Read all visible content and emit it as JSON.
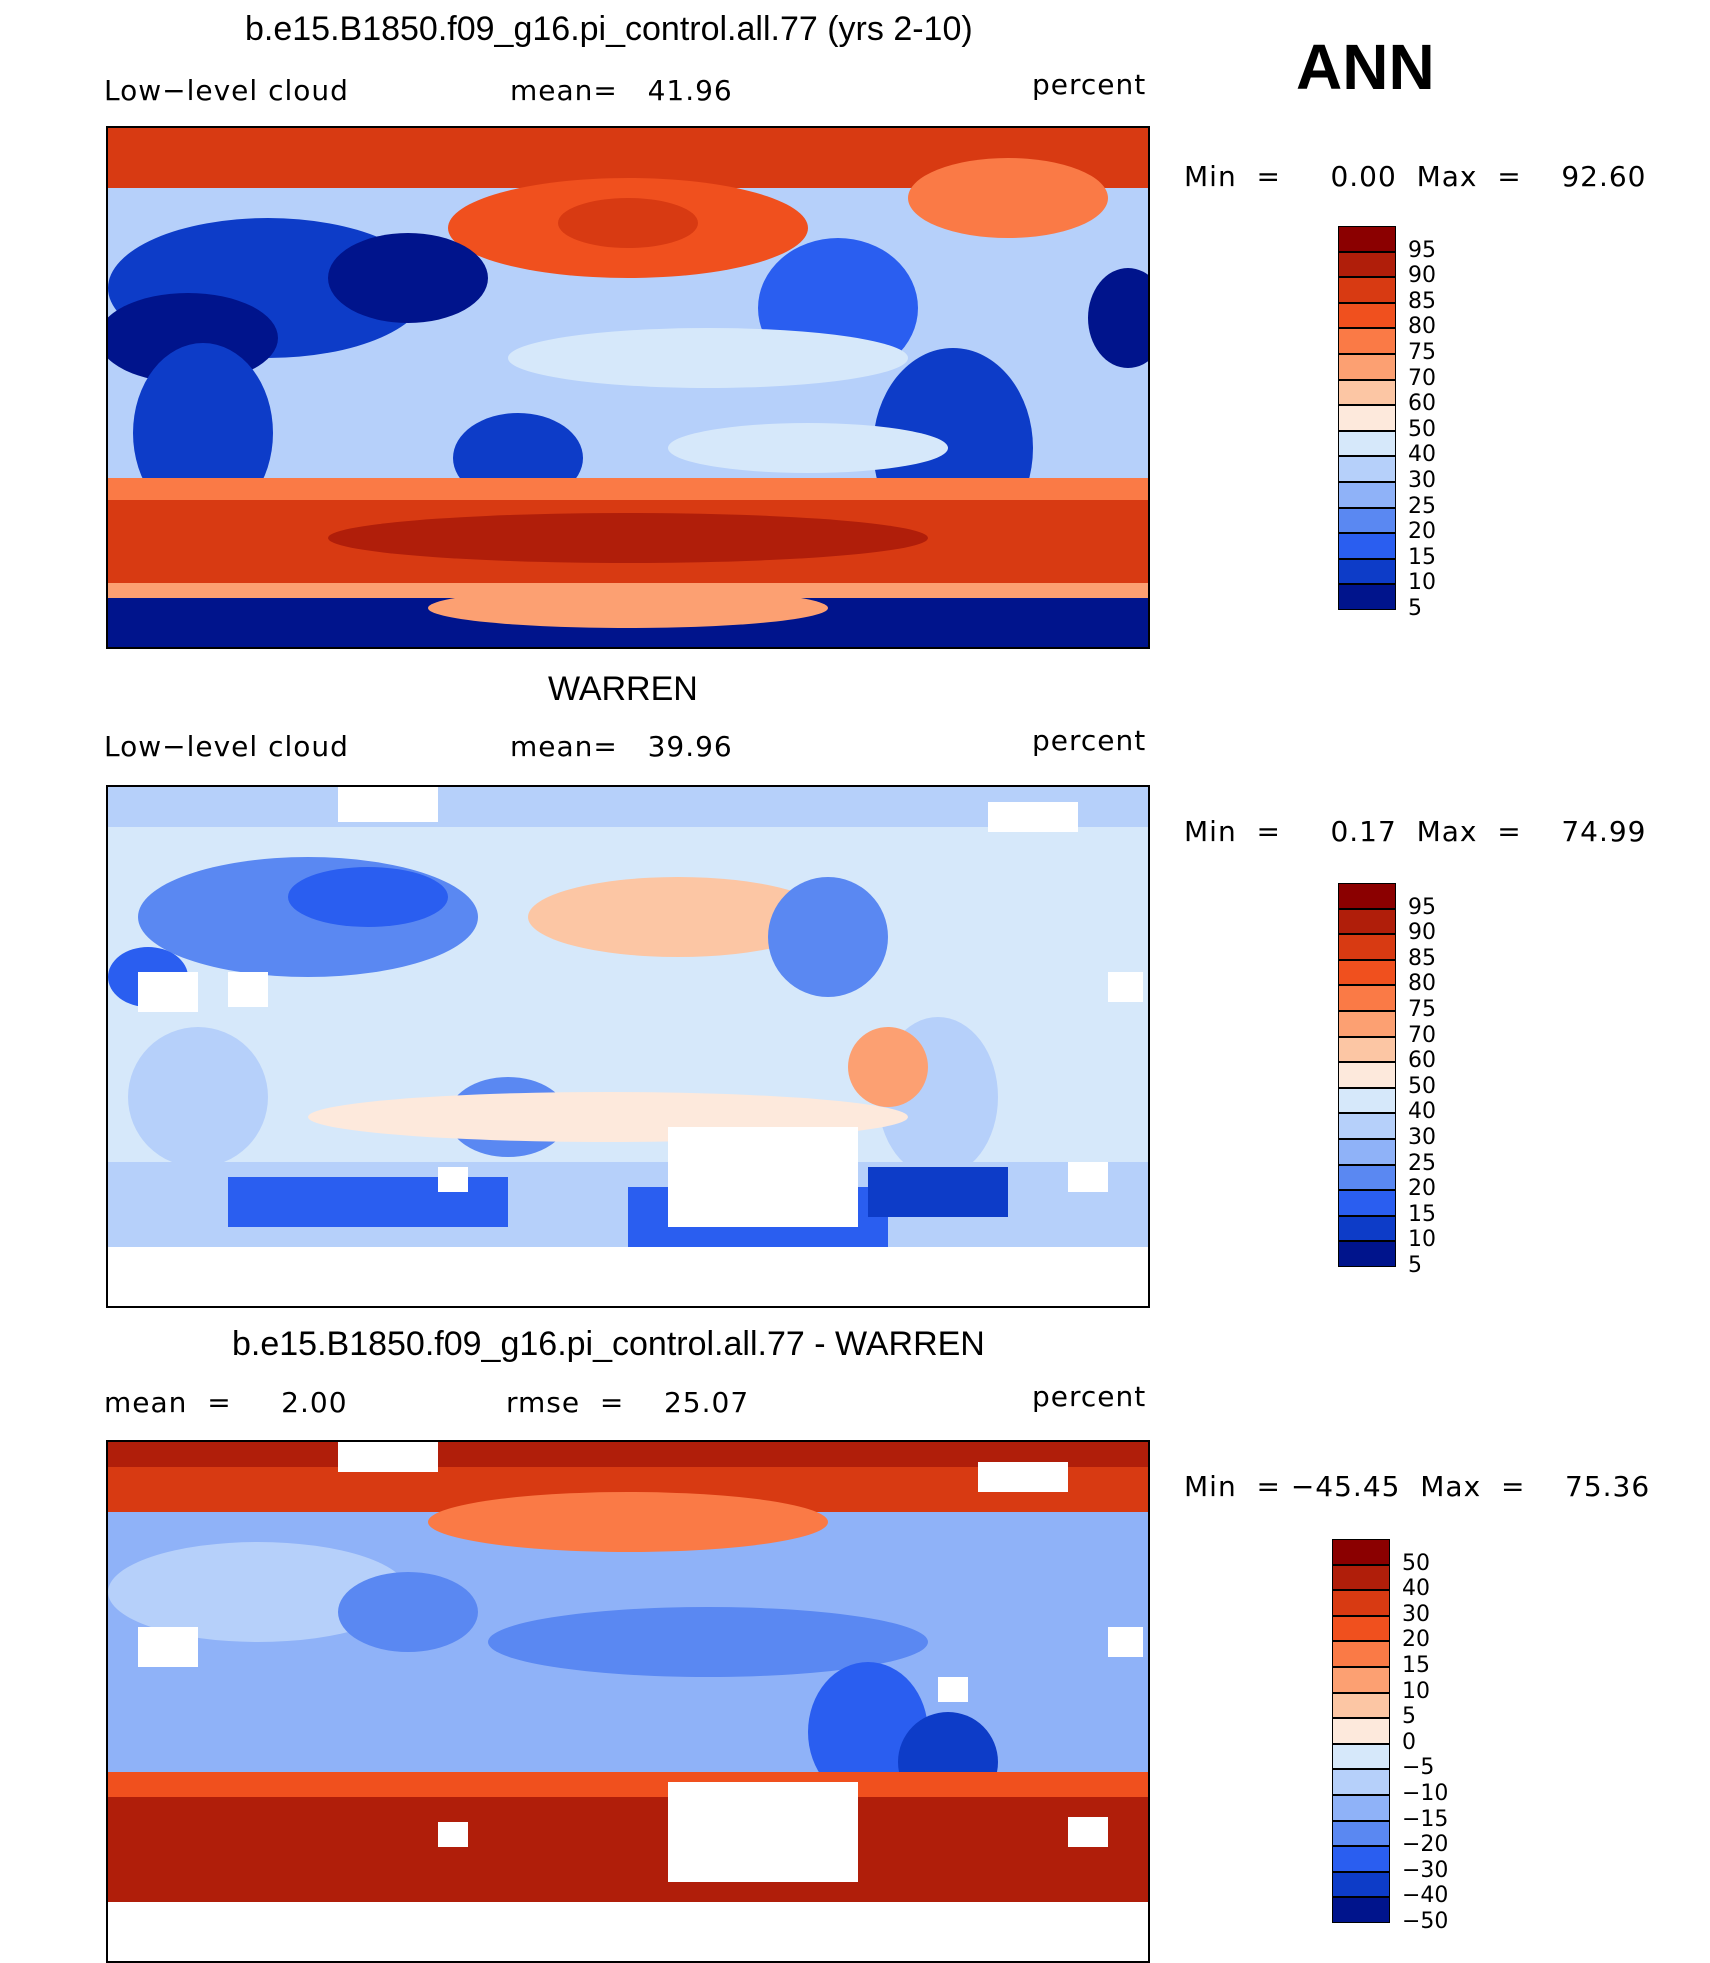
{
  "figure": {
    "season": "ANN"
  },
  "panels": [
    {
      "title": "b.e15.B1850.f09_g16.pi_control.all.77 (yrs 2-10)",
      "left": "Low−level cloud",
      "center": "mean=   41.96",
      "right": "percent",
      "minmax": "Min  =     0.00  Max  =    92.60"
    },
    {
      "title": "WARREN",
      "left": "Low−level cloud",
      "center": "mean=   39.96",
      "right": "percent",
      "minmax": "Min  =     0.17  Max  =    74.99"
    },
    {
      "title": "b.e15.B1850.f09_g16.pi_control.all.77 - WARREN",
      "left": "mean  =     2.00",
      "center": "rmse  =    25.07",
      "right": "percent",
      "minmax": "Min  = −45.45  Max  =    75.36"
    }
  ],
  "chart_data": [
    {
      "type": "heatmap",
      "title": "b.e15.B1850.f09_g16.pi_control.all.77 (yrs 2-10)",
      "variable": "Low-level cloud",
      "units": "percent",
      "mean": 41.96,
      "min": 0.0,
      "max": 92.6,
      "colorbar_levels": [
        5,
        10,
        15,
        20,
        25,
        30,
        40,
        50,
        60,
        70,
        75,
        80,
        85,
        90,
        95
      ],
      "colorbar_labels": [
        "95",
        "90",
        "85",
        "80",
        "75",
        "70",
        "60",
        "50",
        "40",
        "30",
        "25",
        "20",
        "15",
        "10",
        "5"
      ]
    },
    {
      "type": "heatmap",
      "title": "WARREN",
      "variable": "Low-level cloud",
      "units": "percent",
      "mean": 39.96,
      "min": 0.17,
      "max": 74.99,
      "colorbar_levels": [
        5,
        10,
        15,
        20,
        25,
        30,
        40,
        50,
        60,
        70,
        75,
        80,
        85,
        90,
        95
      ],
      "colorbar_labels": [
        "95",
        "90",
        "85",
        "80",
        "75",
        "70",
        "60",
        "50",
        "40",
        "30",
        "25",
        "20",
        "15",
        "10",
        "5"
      ]
    },
    {
      "type": "heatmap",
      "title": "b.e15.B1850.f09_g16.pi_control.all.77 - WARREN",
      "units": "percent",
      "mean": 2.0,
      "rmse": 25.07,
      "min": -45.45,
      "max": 75.36,
      "colorbar_levels": [
        -50,
        -40,
        -30,
        -20,
        -15,
        -10,
        -5,
        0,
        5,
        10,
        15,
        20,
        30,
        40,
        50
      ],
      "colorbar_labels": [
        "50",
        "40",
        "30",
        "20",
        "15",
        "10",
        "5",
        "0",
        "−5",
        "−10",
        "−15",
        "−20",
        "−30",
        "−40",
        "−50"
      ]
    }
  ],
  "colors": {
    "scale": [
      "#8b0000",
      "#b01e0a",
      "#d83a12",
      "#f0501e",
      "#fa7a46",
      "#fca072",
      "#fcc6a4",
      "#fde9dc",
      "#d6e8fa",
      "#b6d0fa",
      "#8fb2f8",
      "#5a88f2",
      "#2a5ef0",
      "#0d3cc8",
      "#00148c"
    ]
  }
}
